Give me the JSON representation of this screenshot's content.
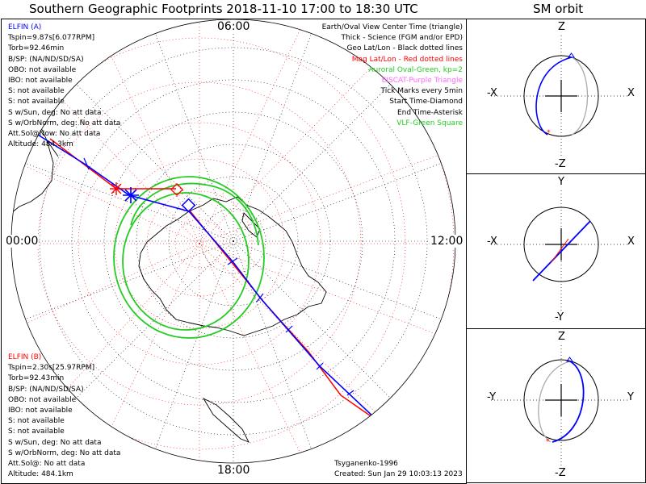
{
  "header": {
    "title": "Southern Geographic Footprints 2018-11-10 17:00 to 18:30 UTC",
    "orbit_title": "SM orbit"
  },
  "map": {
    "hour_labels": {
      "top": "06:00",
      "left": "00:00",
      "right": "12:00",
      "bottom": "18:00"
    },
    "legend": [
      {
        "text": "Earth/Oval View Center Time (triangle)",
        "color": "#000000"
      },
      {
        "text": "Thick - Science (FGM and/or EPD)",
        "color": "#000000"
      },
      {
        "text": "Geo Lat/Lon - Black dotted lines",
        "color": "#000000"
      },
      {
        "text": "Mag Lat/Lon - Red dotted lines",
        "color": "#ff0000"
      },
      {
        "text": "Auroral Oval-Green, kp=2",
        "color": "#22cc22"
      },
      {
        "text": "EISCAT-Purple Triangle",
        "color": "#ff66ff"
      },
      {
        "text": "Tick Marks every 5min",
        "color": "#000000"
      },
      {
        "text": "Start Time-Diamond",
        "color": "#000000"
      },
      {
        "text": "End Time-Asterisk",
        "color": "#000000"
      },
      {
        "text": "VLF-Green Square",
        "color": "#22cc22"
      }
    ],
    "elfin_a": {
      "name": "ELFIN (A)",
      "color": "#0000ff",
      "lines": [
        "Tspin=9.87s[6.077RPM]",
        "Torb=92.46min",
        "B/SP: (NA/ND/SD/SA)",
        "OBO: not available",
        "IBO: not available",
        "S: not available",
        "S: not available",
        "S w/Sun, deg: No att data",
        "S w/OrbNorm, deg: No att data",
        "Att.Sol@Now: No att data",
        "Altitude: 484.3km"
      ]
    },
    "elfin_b": {
      "name": "ELFIN (B)",
      "color": "#ff0000",
      "lines": [
        "Tspin=2.30s[25.97RPM]",
        "Torb=92.43min",
        "B/SP: (NA/ND/SD/SA)",
        "OBO: not available",
        "IBO: not available",
        "S: not available",
        "S: not available",
        "S w/Sun, deg: No att data",
        "S w/OrbNorm, deg: No att data",
        "Att.Sol@: No att data",
        "Altitude: 484.1km"
      ]
    },
    "credit": "Tsyganenko-1996",
    "created": "Created: Sun Jan 29 10:03:13 2023"
  },
  "orbit_panels": [
    {
      "top": "Z",
      "bottom": "-Z",
      "left": "-X",
      "right": "X"
    },
    {
      "top": "Y",
      "bottom": "-Y",
      "left": "-X",
      "right": "X"
    },
    {
      "top": "Z",
      "bottom": "-Z",
      "left": "-Y",
      "right": "Y"
    }
  ],
  "colors": {
    "elfin_a": "#0000ff",
    "elfin_b": "#ff0000",
    "auroral_oval": "#22cc22",
    "geo_grid": "#000000",
    "mag_grid": "#ff0000"
  }
}
